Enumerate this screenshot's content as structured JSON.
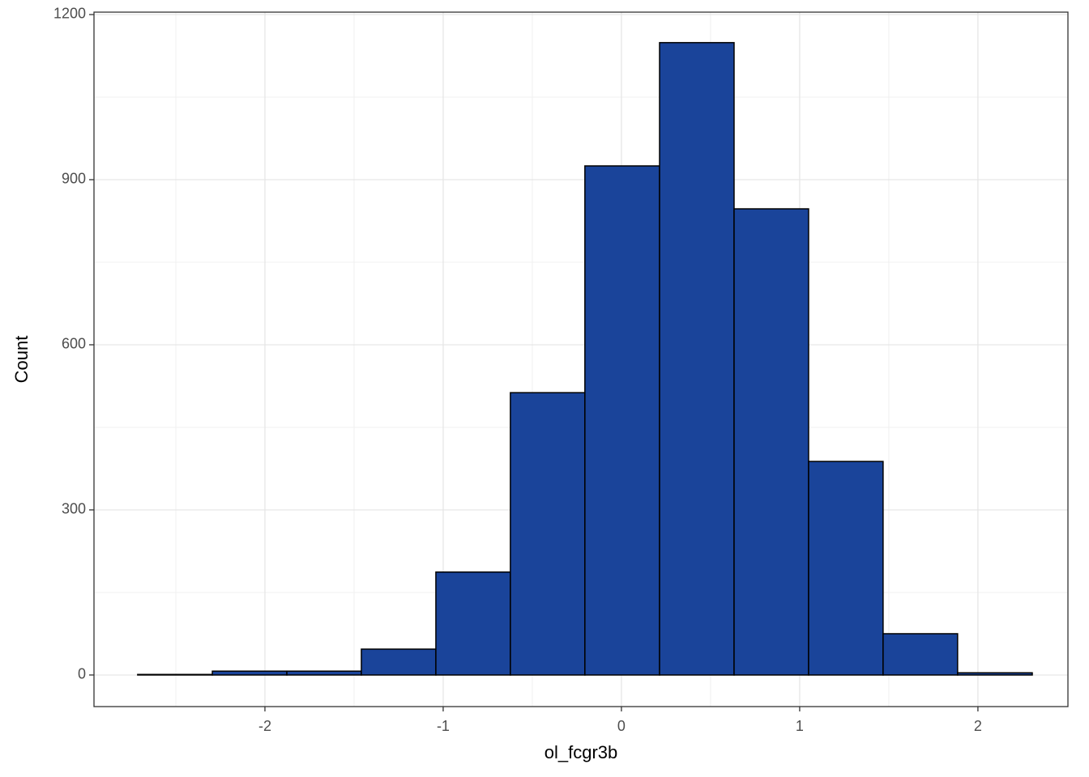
{
  "chart_data": {
    "type": "histogram",
    "x_label": "ol_fcgr3b",
    "y_label": "Count",
    "bins": [
      -2.714,
      -2.295,
      -1.877,
      -1.459,
      -1.041,
      -0.623,
      -0.205,
      0.214,
      0.632,
      1.05,
      1.468,
      1.886,
      2.305
    ],
    "counts": [
      1,
      7,
      7,
      47,
      187,
      513,
      925,
      1149,
      847,
      388,
      75,
      4
    ],
    "color": "#1a449a",
    "xlim": [
      -2.959,
      2.505
    ],
    "ylim": [
      -57.4,
      1204.4
    ],
    "xticks": [
      -2,
      -1,
      0,
      1,
      2
    ],
    "yticks": [
      0,
      300,
      600,
      900,
      1200
    ],
    "x_minor_ticks": [
      -2.5,
      -1.5,
      -0.5,
      0.5,
      1.5
    ],
    "y_minor_ticks": [
      150,
      450,
      750,
      1050
    ],
    "grid": true
  }
}
